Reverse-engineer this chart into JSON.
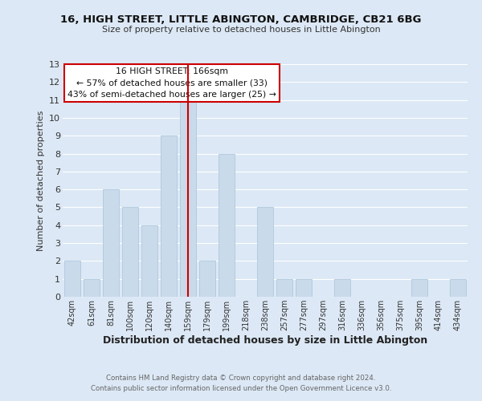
{
  "title_line1": "16, HIGH STREET, LITTLE ABINGTON, CAMBRIDGE, CB21 6BG",
  "title_line2": "Size of property relative to detached houses in Little Abington",
  "xlabel": "Distribution of detached houses by size in Little Abington",
  "ylabel": "Number of detached properties",
  "bar_labels": [
    "42sqm",
    "61sqm",
    "81sqm",
    "100sqm",
    "120sqm",
    "140sqm",
    "159sqm",
    "179sqm",
    "199sqm",
    "218sqm",
    "238sqm",
    "257sqm",
    "277sqm",
    "297sqm",
    "316sqm",
    "336sqm",
    "356sqm",
    "375sqm",
    "395sqm",
    "414sqm",
    "434sqm"
  ],
  "bar_values": [
    2,
    1,
    6,
    5,
    4,
    9,
    11,
    2,
    8,
    0,
    5,
    1,
    1,
    0,
    1,
    0,
    0,
    0,
    1,
    0,
    1
  ],
  "bar_color": "#c9daea",
  "bar_edge_color": "#b0c8e0",
  "grid_color": "#ffffff",
  "bg_color": "#dce8f5",
  "ylim": [
    0,
    13
  ],
  "yticks": [
    0,
    1,
    2,
    3,
    4,
    5,
    6,
    7,
    8,
    9,
    10,
    11,
    12,
    13
  ],
  "vline_x": 6,
  "vline_color": "#cc0000",
  "annotation_title": "16 HIGH STREET: 166sqm",
  "annotation_line1": "← 57% of detached houses are smaller (33)",
  "annotation_line2": "43% of semi-detached houses are larger (25) →",
  "annotation_box_color": "#ffffff",
  "annotation_box_edge": "#cc0000",
  "footnote1": "Contains HM Land Registry data © Crown copyright and database right 2024.",
  "footnote2": "Contains public sector information licensed under the Open Government Licence v3.0."
}
